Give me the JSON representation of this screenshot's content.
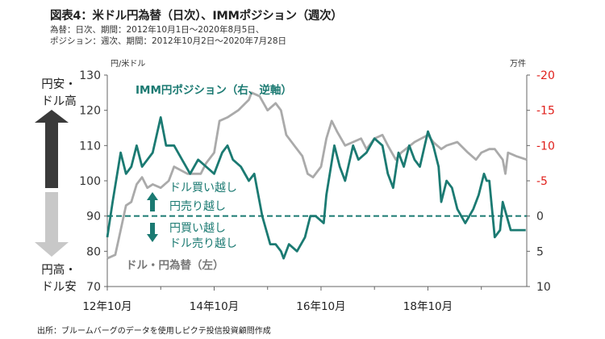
{
  "title": "図表4：米ドル円為替（日次）、IMMポジション（週次）",
  "subtitle_lines": [
    "為替：日次、期間：2012年10月1日～2020年8月5日、",
    "ポジション：週次、期間：2012年10月2日～2020年7月28日"
  ],
  "source": "出所：ブルームバーグのデータを使用しピクテ投信投資顧問作成",
  "colors": {
    "fx": "#aaaaaa",
    "position": "#1b7a72",
    "right_axis": "#e0201c",
    "arrow_up": "#3a3a3a",
    "arrow_down": "#c8c8c8"
  },
  "annotations": {
    "yen_weak": "円安・\nドル高",
    "yen_strong": "円高・\nドル安",
    "long_dollar": "ドル買い越し",
    "short_yen": "円売り越し",
    "long_yen": "円買い越し",
    "short_dollar": "ドル売り越し"
  },
  "chart_data": {
    "type": "line",
    "left_unit": "円/米ドル",
    "right_unit": "万件",
    "left_ticks": [
      70,
      80,
      90,
      100,
      110,
      120,
      130
    ],
    "right_ticks": [
      10,
      5,
      0,
      -5,
      -10,
      -15,
      -20
    ],
    "ylim_left": [
      70,
      130
    ],
    "ylim_right_inverted": [
      10,
      -20
    ],
    "x_tick_labels": [
      "12年10月",
      "14年10月",
      "16年10月",
      "18年10月"
    ],
    "xlim": [
      2012.75,
      2020.6
    ],
    "zero_line_right": 0,
    "series": [
      {
        "name": "ドル・円為替（左）",
        "axis": "left",
        "x": [
          2012.75,
          2012.9,
          2013.0,
          2013.1,
          2013.2,
          2013.3,
          2013.4,
          2013.5,
          2013.6,
          2013.75,
          2013.9,
          2014.0,
          2014.25,
          2014.5,
          2014.6,
          2014.75,
          2014.85,
          2015.0,
          2015.2,
          2015.4,
          2015.45,
          2015.6,
          2015.75,
          2015.9,
          2016.0,
          2016.1,
          2016.25,
          2016.4,
          2016.5,
          2016.6,
          2016.75,
          2016.85,
          2016.95,
          2017.05,
          2017.2,
          2017.35,
          2017.5,
          2017.6,
          2017.75,
          2017.9,
          2018.0,
          2018.15,
          2018.25,
          2018.5,
          2018.75,
          2018.85,
          2019.0,
          2019.1,
          2019.3,
          2019.5,
          2019.65,
          2019.75,
          2019.9,
          2020.0,
          2020.15,
          2020.2,
          2020.25,
          2020.4,
          2020.6
        ],
        "values": [
          78,
          79,
          86,
          93,
          94,
          99,
          101,
          98,
          99,
          98,
          100,
          104,
          102,
          102,
          105,
          108,
          117,
          118,
          120,
          123,
          125,
          124,
          120,
          122,
          120,
          113,
          110,
          107,
          102,
          101,
          104,
          112,
          117,
          114,
          110,
          111,
          112,
          109,
          112,
          113,
          110,
          106,
          108,
          111,
          113,
          111,
          109,
          110,
          111,
          108,
          106,
          108,
          109,
          109,
          106,
          102,
          108,
          107,
          106
        ]
      },
      {
        "name": "IMM円ポジション（右、逆軸）",
        "axis": "right_inverted",
        "x": [
          2012.75,
          2012.85,
          2013.0,
          2013.1,
          2013.2,
          2013.3,
          2013.4,
          2013.5,
          2013.6,
          2013.75,
          2013.85,
          2014.0,
          2014.15,
          2014.3,
          2014.45,
          2014.6,
          2014.75,
          2014.9,
          2015.0,
          2015.1,
          2015.25,
          2015.4,
          2015.5,
          2015.55,
          2015.65,
          2015.8,
          2015.9,
          2016.0,
          2016.05,
          2016.15,
          2016.3,
          2016.45,
          2016.55,
          2016.65,
          2016.8,
          2016.85,
          2017.0,
          2017.1,
          2017.2,
          2017.35,
          2017.45,
          2017.6,
          2017.75,
          2017.9,
          2018.0,
          2018.1,
          2018.2,
          2018.3,
          2018.4,
          2018.5,
          2018.6,
          2018.75,
          2018.85,
          2018.95,
          2019.0,
          2019.1,
          2019.2,
          2019.3,
          2019.45,
          2019.6,
          2019.7,
          2019.8,
          2019.85,
          2019.9,
          2020.0,
          2020.1,
          2020.15,
          2020.3,
          2020.45,
          2020.58
        ],
        "values": [
          3,
          -2,
          -9,
          -6,
          -7,
          -10,
          -7,
          -8,
          -9,
          -14,
          -10,
          -10,
          -8,
          -6,
          -8,
          -7,
          -6,
          -9,
          -10,
          -8,
          -7,
          -5,
          -6,
          -4,
          0,
          4,
          4,
          5,
          6,
          4,
          5,
          3,
          0,
          0,
          1,
          -3,
          -10,
          -7,
          -5,
          -10,
          -8,
          -9,
          -11,
          -10,
          -6,
          -4,
          -9,
          -7,
          -10,
          -8,
          -7,
          -12,
          -10,
          -7,
          -2,
          -5,
          -4,
          -1,
          1,
          -1,
          -3,
          -6,
          -5,
          -5,
          3,
          2,
          -2,
          2,
          2,
          2
        ]
      }
    ]
  }
}
